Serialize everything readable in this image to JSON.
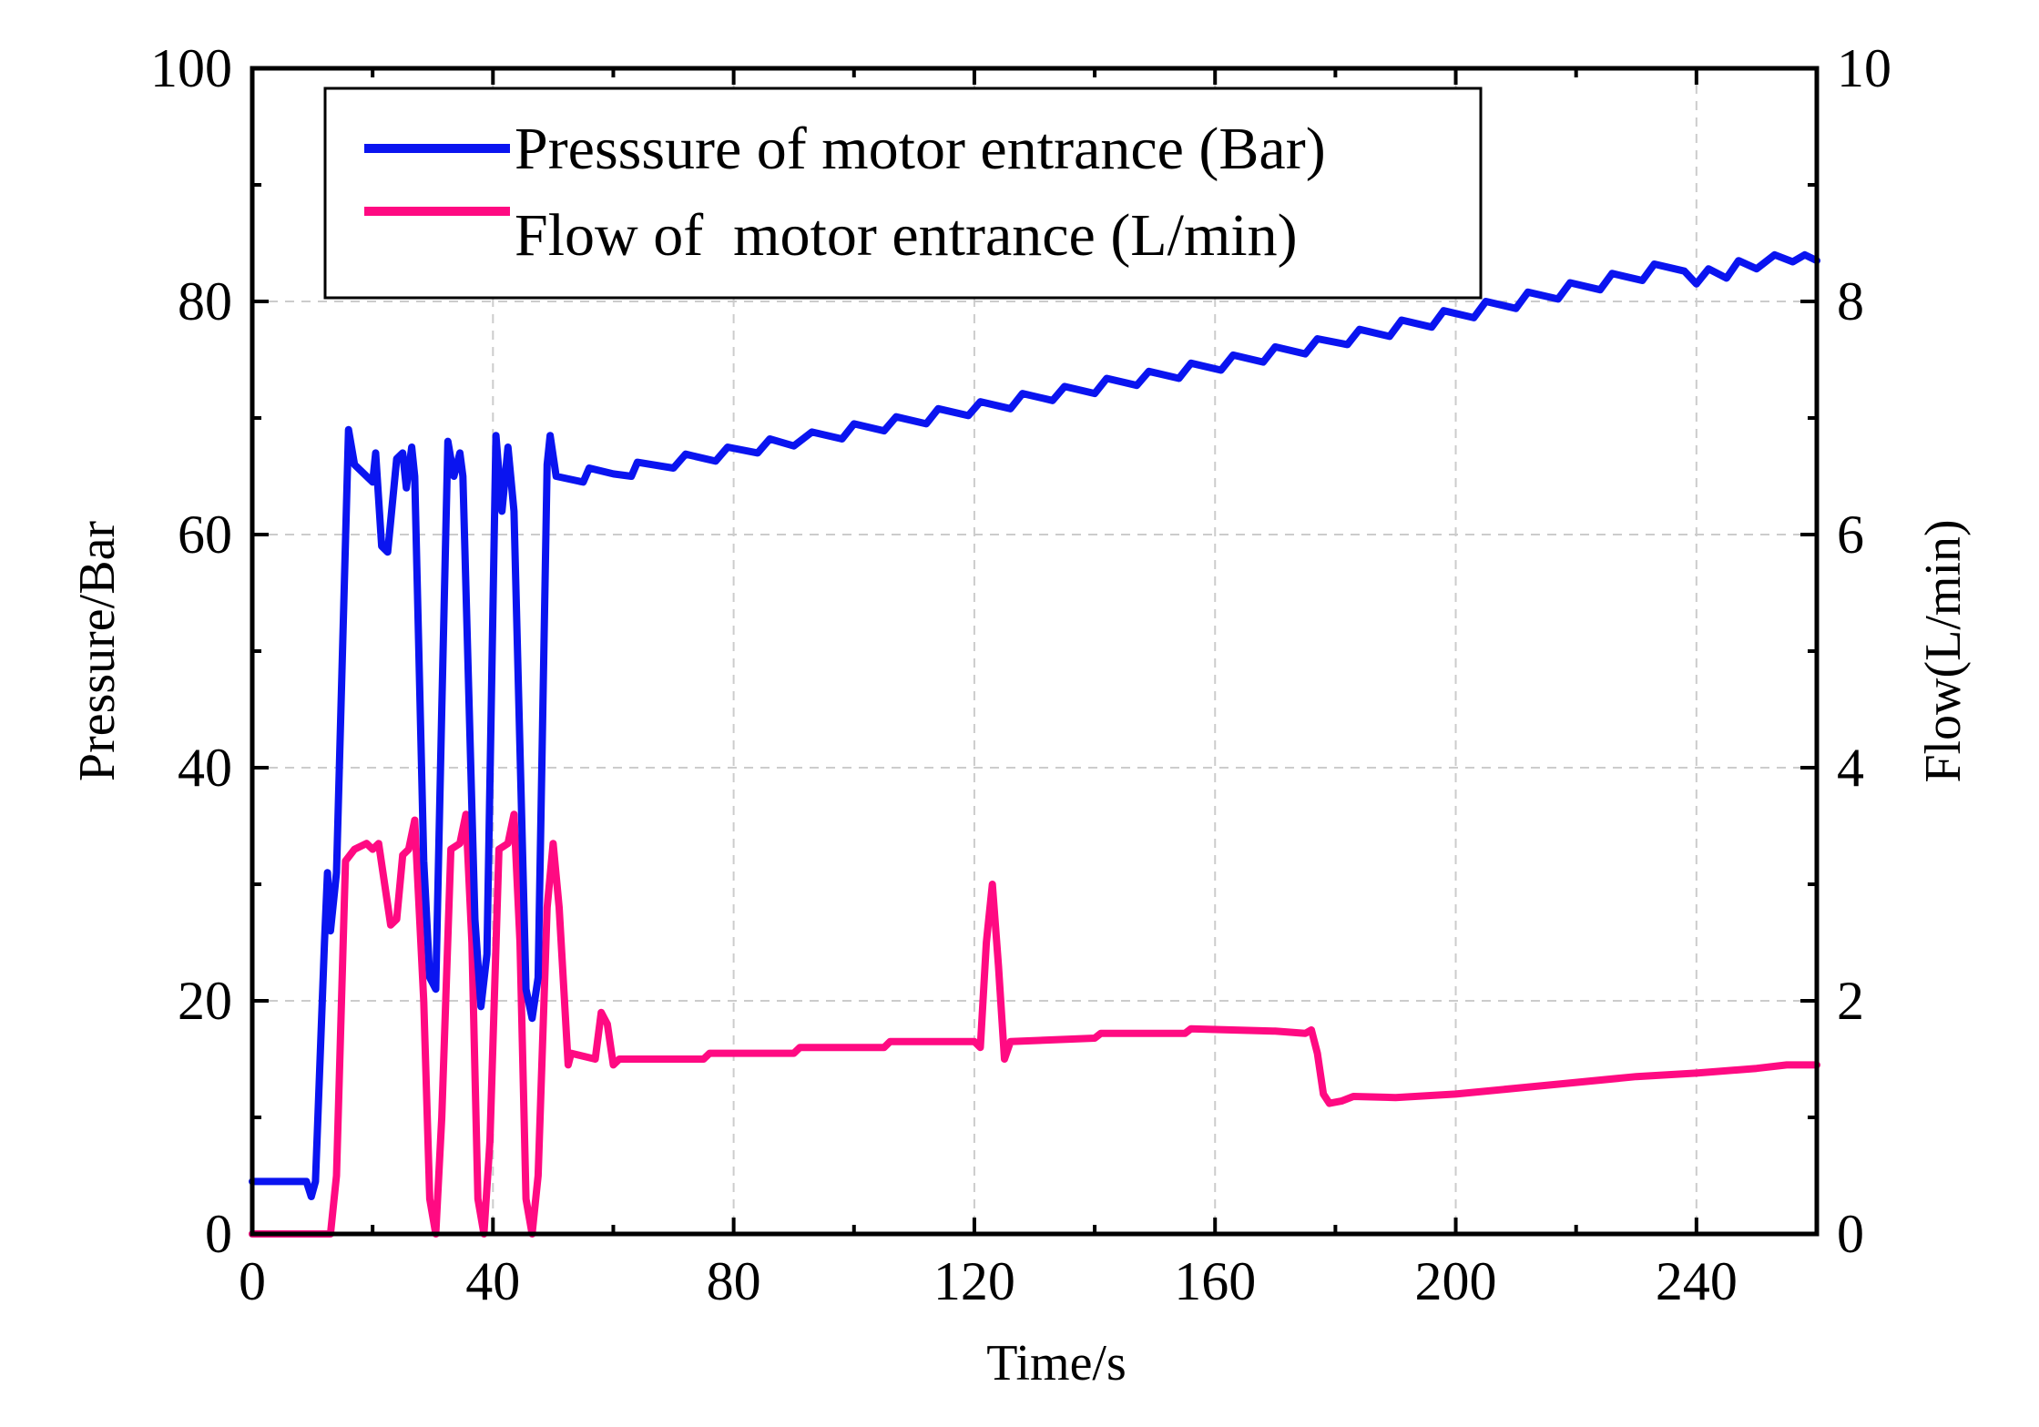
{
  "chart_data": {
    "type": "line",
    "title": "",
    "xlabel": "Time/s",
    "ylabel": "Pressure/Bar",
    "y2label": "Flow(L/min)",
    "xlim": [
      0,
      260
    ],
    "ylim": [
      0,
      100
    ],
    "y2lim": [
      0,
      10
    ],
    "x_ticks": [
      0,
      40,
      80,
      120,
      160,
      200,
      240
    ],
    "y_ticks": [
      0,
      20,
      40,
      60,
      80,
      100
    ],
    "y2_ticks": [
      0,
      2,
      4,
      6,
      8,
      10
    ],
    "grid": true,
    "legend_position": "top-left",
    "series": [
      {
        "name": "Presssure of motor entrance (Bar)",
        "axis": "left",
        "color": "#0a14f0",
        "points": [
          [
            0,
            4.5
          ],
          [
            9,
            4.5
          ],
          [
            9.8,
            3.2
          ],
          [
            10.5,
            4.5
          ],
          [
            12,
            25
          ],
          [
            12.5,
            31
          ],
          [
            13,
            26
          ],
          [
            14,
            31
          ],
          [
            16,
            69
          ],
          [
            17,
            66
          ],
          [
            20,
            64.5
          ],
          [
            20.5,
            67
          ],
          [
            21.5,
            59
          ],
          [
            22.5,
            58.5
          ],
          [
            24,
            66.5
          ],
          [
            25,
            67
          ],
          [
            25.6,
            64
          ],
          [
            26.5,
            67.5
          ],
          [
            27,
            65
          ],
          [
            28.5,
            32
          ],
          [
            29.5,
            22
          ],
          [
            30.5,
            21
          ],
          [
            31.5,
            45
          ],
          [
            32.5,
            68
          ],
          [
            33.5,
            65
          ],
          [
            34.5,
            67
          ],
          [
            35,
            65
          ],
          [
            37,
            27
          ],
          [
            38,
            19.5
          ],
          [
            39,
            24
          ],
          [
            40.5,
            68.5
          ],
          [
            41.5,
            62
          ],
          [
            42.5,
            67.5
          ],
          [
            43.5,
            62
          ],
          [
            45.5,
            21
          ],
          [
            46.5,
            18.5
          ],
          [
            47.5,
            22
          ],
          [
            49,
            66
          ],
          [
            49.5,
            68.5
          ],
          [
            50.5,
            65
          ],
          [
            55,
            64.5
          ],
          [
            56,
            65.7
          ],
          [
            60,
            65.2
          ],
          [
            63,
            65
          ],
          [
            64,
            66.2
          ],
          [
            70,
            65.7
          ],
          [
            72,
            66.9
          ],
          [
            77,
            66.3
          ],
          [
            79,
            67.5
          ],
          [
            84,
            67
          ],
          [
            86,
            68.2
          ],
          [
            90,
            67.6
          ],
          [
            93,
            68.8
          ],
          [
            98,
            68.2
          ],
          [
            100,
            69.5
          ],
          [
            105,
            68.9
          ],
          [
            107,
            70.1
          ],
          [
            112,
            69.5
          ],
          [
            114,
            70.8
          ],
          [
            119,
            70.2
          ],
          [
            121,
            71.4
          ],
          [
            126,
            70.8
          ],
          [
            128,
            72.1
          ],
          [
            133,
            71.5
          ],
          [
            135,
            72.7
          ],
          [
            140,
            72.1
          ],
          [
            142,
            73.4
          ],
          [
            147,
            72.8
          ],
          [
            149,
            74
          ],
          [
            154,
            73.4
          ],
          [
            156,
            74.7
          ],
          [
            161,
            74.1
          ],
          [
            163,
            75.4
          ],
          [
            168,
            74.8
          ],
          [
            170,
            76.1
          ],
          [
            175,
            75.5
          ],
          [
            177,
            76.8
          ],
          [
            182,
            76.3
          ],
          [
            184,
            77.6
          ],
          [
            189,
            77
          ],
          [
            191,
            78.4
          ],
          [
            196,
            77.8
          ],
          [
            198,
            79.2
          ],
          [
            203,
            78.6
          ],
          [
            205,
            80
          ],
          [
            210,
            79.4
          ],
          [
            212,
            80.8
          ],
          [
            217,
            80.2
          ],
          [
            219,
            81.6
          ],
          [
            224,
            81
          ],
          [
            226,
            82.4
          ],
          [
            231,
            81.8
          ],
          [
            233,
            83.2
          ],
          [
            238,
            82.6
          ],
          [
            240,
            81.5
          ],
          [
            242,
            82.8
          ],
          [
            245,
            82
          ],
          [
            247,
            83.5
          ],
          [
            250,
            82.8
          ],
          [
            253,
            84
          ],
          [
            256,
            83.4
          ],
          [
            258,
            84
          ],
          [
            260,
            83.5
          ]
        ]
      },
      {
        "name": "Flow of  motor entrance (L/min)",
        "axis": "right",
        "color": "#ff0a82",
        "points": [
          [
            0,
            0
          ],
          [
            13,
            0
          ],
          [
            14,
            0.5
          ],
          [
            15.5,
            3.2
          ],
          [
            17,
            3.3
          ],
          [
            19,
            3.35
          ],
          [
            20,
            3.3
          ],
          [
            21,
            3.35
          ],
          [
            22,
            3.0
          ],
          [
            23,
            2.65
          ],
          [
            24,
            2.7
          ],
          [
            25,
            3.25
          ],
          [
            26,
            3.3
          ],
          [
            27,
            3.55
          ],
          [
            28.5,
            2.0
          ],
          [
            29.5,
            0.3
          ],
          [
            30.5,
            0
          ],
          [
            31.5,
            1.0
          ],
          [
            33,
            3.3
          ],
          [
            34.5,
            3.35
          ],
          [
            35.5,
            3.6
          ],
          [
            36.5,
            2.5
          ],
          [
            37.5,
            0.3
          ],
          [
            38.5,
            0
          ],
          [
            39.5,
            0.8
          ],
          [
            41,
            3.3
          ],
          [
            42.5,
            3.35
          ],
          [
            43.5,
            3.6
          ],
          [
            44.5,
            2.5
          ],
          [
            45.5,
            0.3
          ],
          [
            46.5,
            0
          ],
          [
            47.5,
            0.5
          ],
          [
            49,
            2.8
          ],
          [
            50,
            3.35
          ],
          [
            51,
            2.8
          ],
          [
            52.5,
            1.45
          ],
          [
            53,
            1.55
          ],
          [
            57,
            1.5
          ],
          [
            58,
            1.9
          ],
          [
            59,
            1.8
          ],
          [
            60,
            1.45
          ],
          [
            61,
            1.5
          ],
          [
            75,
            1.5
          ],
          [
            76,
            1.55
          ],
          [
            90,
            1.55
          ],
          [
            91,
            1.6
          ],
          [
            105,
            1.6
          ],
          [
            106,
            1.65
          ],
          [
            120,
            1.65
          ],
          [
            121,
            1.6
          ],
          [
            122,
            2.5
          ],
          [
            123,
            3.0
          ],
          [
            124,
            2.3
          ],
          [
            125,
            1.5
          ],
          [
            126,
            1.65
          ],
          [
            140,
            1.68
          ],
          [
            141,
            1.72
          ],
          [
            155,
            1.72
          ],
          [
            156,
            1.76
          ],
          [
            170,
            1.74
          ],
          [
            175,
            1.72
          ],
          [
            176,
            1.75
          ],
          [
            177,
            1.55
          ],
          [
            178,
            1.2
          ],
          [
            179,
            1.12
          ],
          [
            181,
            1.14
          ],
          [
            183,
            1.18
          ],
          [
            190,
            1.17
          ],
          [
            200,
            1.2
          ],
          [
            210,
            1.25
          ],
          [
            220,
            1.3
          ],
          [
            230,
            1.35
          ],
          [
            240,
            1.38
          ],
          [
            250,
            1.42
          ],
          [
            255,
            1.45
          ],
          [
            260,
            1.45
          ]
        ]
      }
    ]
  }
}
